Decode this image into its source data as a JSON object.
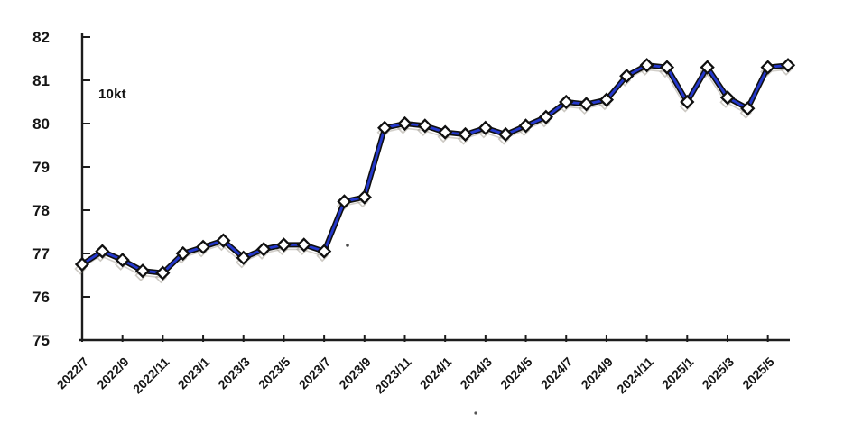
{
  "chart": {
    "style": {
      "line_color": "#2438cc",
      "line_outline_color": "#101010",
      "marker_fill": "#ffffff",
      "marker_stroke": "#101010",
      "axis_color": "#1c1c1c",
      "text_color": "#161616",
      "ghost_color": "#9b958a",
      "background": "#ffffff"
    }
  },
  "chart_data": {
    "type": "line",
    "unit": "10kt",
    "x": [
      "2022/7",
      "2022/8",
      "2022/9",
      "2022/10",
      "2022/11",
      "2022/12",
      "2023/1",
      "2023/2",
      "2023/3",
      "2023/4",
      "2023/5",
      "2023/6",
      "2023/7",
      "2023/8",
      "2023/9",
      "2023/10",
      "2023/11",
      "2023/12",
      "2024/1",
      "2024/2",
      "2024/3",
      "2024/4",
      "2024/5",
      "2024/6",
      "2024/7",
      "2024/8",
      "2024/9",
      "2024/10",
      "2024/11",
      "2024/12",
      "2025/1",
      "2025/2",
      "2025/3",
      "2025/4",
      "2025/5",
      "2025/6"
    ],
    "series": [
      {
        "name": "monthly-value",
        "values": [
          76.75,
          77.05,
          76.85,
          76.6,
          76.55,
          77.0,
          77.15,
          77.3,
          76.9,
          77.1,
          77.2,
          77.2,
          77.05,
          78.2,
          78.3,
          79.9,
          80.0,
          79.95,
          79.8,
          79.75,
          79.9,
          79.75,
          79.95,
          80.15,
          80.5,
          80.45,
          80.55,
          81.1,
          81.35,
          81.3,
          80.5,
          81.3,
          80.6,
          80.35,
          81.3,
          81.35
        ]
      }
    ],
    "visible_x_tick_labels": [
      "2022/7",
      "2022/9",
      "2022/11",
      "2023/1",
      "2023/3",
      "2023/5",
      "2023/7",
      "2023/9",
      "2023/11",
      "2024/1",
      "2024/3",
      "2024/5",
      "2024/7",
      "2024/9",
      "2024/11",
      "2025/1",
      "2025/3",
      "2025/5"
    ],
    "x_tick_step": 2,
    "x_label_rotation": -45,
    "y_ticks": [
      75,
      76,
      77,
      78,
      79,
      80,
      81,
      82
    ],
    "ylim": [
      75,
      82
    ],
    "grid": false,
    "legend": "none",
    "marker": "diamond"
  }
}
